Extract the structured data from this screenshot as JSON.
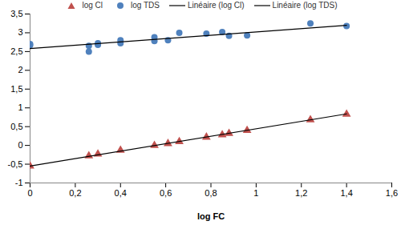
{
  "chart_data": {
    "type": "scatter",
    "x_label": "log FC",
    "xlim": [
      0,
      1.6
    ],
    "xticks": [
      0,
      {
        "value": 0.2,
        "label": "0,2"
      },
      {
        "value": 0.4,
        "label": "0,4"
      },
      {
        "value": 0.6,
        "label": "0,6"
      },
      {
        "value": 0.8,
        "label": "0,8"
      },
      1,
      {
        "value": 1.2,
        "label": "1,2"
      },
      {
        "value": 1.4,
        "label": "1,4"
      },
      {
        "value": 1.6,
        "label": "1,6"
      }
    ],
    "ylim": [
      -1,
      3.5
    ],
    "yticks": [
      -1,
      {
        "value": -0.5,
        "label": "-0,5"
      },
      0,
      {
        "value": 0.5,
        "label": "0,5"
      },
      1,
      {
        "value": 1.5,
        "label": "1,5"
      },
      2,
      {
        "value": 2.5,
        "label": "2,5"
      },
      3,
      {
        "value": 3.5,
        "label": "3,5"
      }
    ],
    "grid": false,
    "legend": "top",
    "series": [
      {
        "name": "log Cl",
        "type": "scatter",
        "marker": "triangle",
        "color": "#c0504d",
        "x": [
          0,
          0.26,
          0.3,
          0.4,
          0.55,
          0.61,
          0.66,
          0.78,
          0.85,
          0.88,
          0.96,
          1.24,
          1.4
        ],
        "values": [
          -0.55,
          -0.28,
          -0.23,
          -0.13,
          0.0,
          0.05,
          0.1,
          0.22,
          0.28,
          0.32,
          0.4,
          0.68,
          0.83
        ]
      },
      {
        "name": "log TDS",
        "type": "scatter",
        "marker": "circle",
        "color": "#4f81bd",
        "x": [
          0,
          0,
          0.26,
          0.26,
          0.3,
          0.3,
          0.4,
          0.4,
          0.55,
          0.55,
          0.61,
          0.66,
          0.78,
          0.85,
          0.88,
          0.96,
          1.24,
          1.4
        ],
        "values": [
          2.7,
          2.67,
          2.5,
          2.65,
          2.68,
          2.72,
          2.72,
          2.8,
          2.78,
          2.88,
          2.8,
          3.0,
          2.98,
          3.02,
          2.92,
          2.93,
          3.25,
          3.18
        ]
      },
      {
        "name": "Linéaire (log Cl)",
        "type": "line",
        "line_style": "solid",
        "color": "#000000",
        "x": [
          0,
          1.4
        ],
        "values": [
          -0.55,
          0.84
        ]
      },
      {
        "name": "Linéaire (log TDS)",
        "type": "line",
        "line_style": "solid",
        "color": "#000000",
        "x": [
          0,
          1.4
        ],
        "values": [
          2.58,
          3.2
        ]
      }
    ]
  }
}
